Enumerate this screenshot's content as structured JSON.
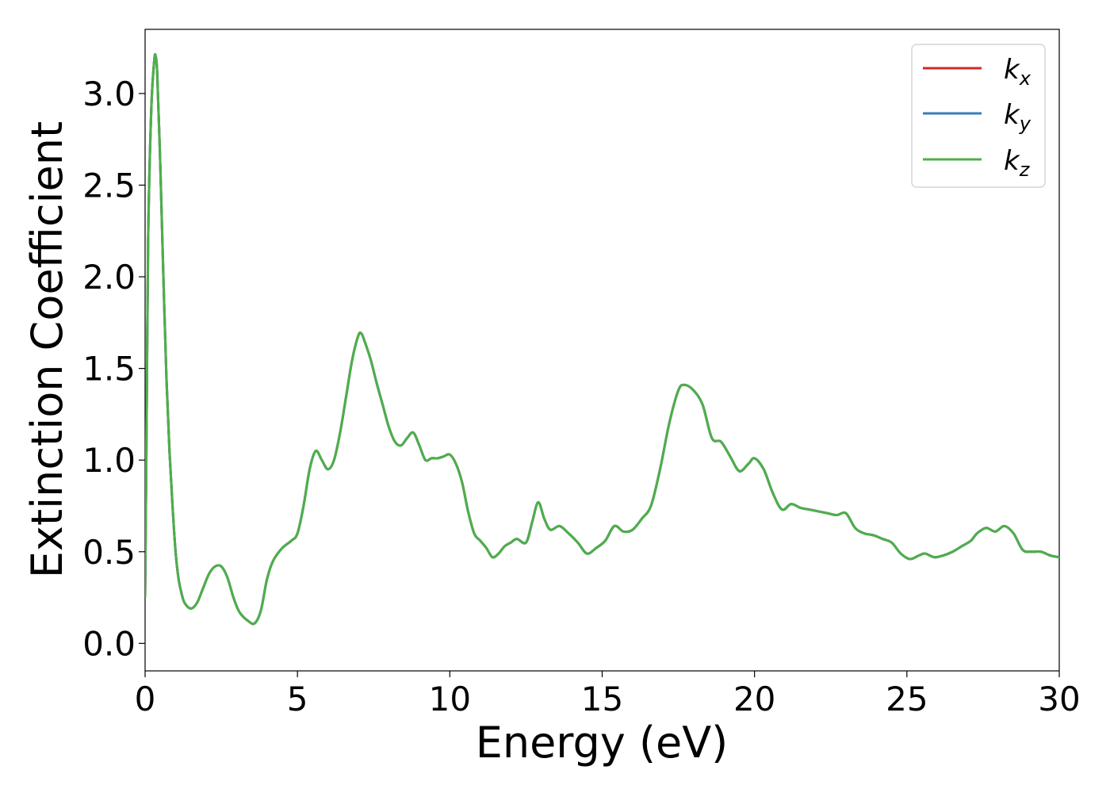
{
  "chart_data": {
    "type": "line",
    "title": "",
    "xlabel": "Energy (eV)",
    "ylabel": "Extinction Coefficient",
    "xlim": [
      0,
      30
    ],
    "ylim": [
      -0.15,
      3.35
    ],
    "x_ticks": [
      0,
      5,
      10,
      15,
      20,
      25,
      30
    ],
    "x_tick_labels": [
      "0",
      "5",
      "10",
      "15",
      "20",
      "25",
      "30"
    ],
    "y_ticks": [
      0.0,
      0.5,
      1.0,
      1.5,
      2.0,
      2.5,
      3.0
    ],
    "y_tick_labels": [
      "0.0",
      "0.5",
      "1.0",
      "1.5",
      "2.0",
      "2.5",
      "3.0"
    ],
    "grid": false,
    "legend_position": "top-right",
    "legend": [
      {
        "symbol": "k",
        "subscript": "x",
        "color": "#d62728"
      },
      {
        "symbol": "k",
        "subscript": "y",
        "color": "#377eb8"
      },
      {
        "symbol": "k",
        "subscript": "z",
        "color": "#4daf4a"
      }
    ],
    "x": [
      0.0,
      0.05,
      0.1,
      0.2,
      0.3,
      0.35,
      0.4,
      0.5,
      0.6,
      0.7,
      0.8,
      0.9,
      1.0,
      1.1,
      1.2,
      1.3,
      1.5,
      1.7,
      1.9,
      2.1,
      2.3,
      2.5,
      2.7,
      2.9,
      3.1,
      3.4,
      3.6,
      3.8,
      4.0,
      4.2,
      4.5,
      4.8,
      5.0,
      5.2,
      5.4,
      5.6,
      5.8,
      6.0,
      6.2,
      6.4,
      6.6,
      6.8,
      7.0,
      7.1,
      7.2,
      7.4,
      7.6,
      7.8,
      8.0,
      8.2,
      8.4,
      8.6,
      8.8,
      9.0,
      9.2,
      9.4,
      9.6,
      9.8,
      10.0,
      10.2,
      10.4,
      10.6,
      10.8,
      11.0,
      11.2,
      11.4,
      11.6,
      11.8,
      12.0,
      12.2,
      12.5,
      12.7,
      12.9,
      13.1,
      13.3,
      13.6,
      13.9,
      14.2,
      14.5,
      14.8,
      15.1,
      15.4,
      15.7,
      16.0,
      16.3,
      16.6,
      16.9,
      17.2,
      17.5,
      17.7,
      18.0,
      18.3,
      18.6,
      18.9,
      19.2,
      19.5,
      19.8,
      20.0,
      20.3,
      20.6,
      20.9,
      21.2,
      21.5,
      21.8,
      22.1,
      22.4,
      22.7,
      23.0,
      23.3,
      23.6,
      23.9,
      24.2,
      24.5,
      24.8,
      25.1,
      25.4,
      25.6,
      25.9,
      26.2,
      26.5,
      26.8,
      27.1,
      27.3,
      27.6,
      27.9,
      28.2,
      28.5,
      28.8,
      29.1,
      29.4,
      29.7,
      30.0
    ],
    "series": [
      {
        "color": "#d62728",
        "y": [
          0.25,
          1.2,
          2.2,
          2.9,
          3.18,
          3.2,
          3.1,
          2.6,
          2.0,
          1.45,
          1.05,
          0.75,
          0.5,
          0.35,
          0.27,
          0.22,
          0.19,
          0.22,
          0.3,
          0.38,
          0.42,
          0.42,
          0.36,
          0.25,
          0.17,
          0.12,
          0.11,
          0.18,
          0.35,
          0.45,
          0.52,
          0.56,
          0.6,
          0.75,
          0.95,
          1.05,
          1.0,
          0.95,
          1.0,
          1.15,
          1.35,
          1.55,
          1.68,
          1.69,
          1.65,
          1.55,
          1.42,
          1.3,
          1.18,
          1.1,
          1.08,
          1.12,
          1.15,
          1.08,
          1.0,
          1.01,
          1.01,
          1.02,
          1.03,
          0.98,
          0.88,
          0.72,
          0.6,
          0.56,
          0.52,
          0.47,
          0.49,
          0.53,
          0.55,
          0.57,
          0.55,
          0.66,
          0.77,
          0.68,
          0.62,
          0.64,
          0.6,
          0.55,
          0.49,
          0.52,
          0.56,
          0.64,
          0.61,
          0.62,
          0.68,
          0.75,
          0.95,
          1.2,
          1.38,
          1.41,
          1.38,
          1.3,
          1.12,
          1.1,
          1.02,
          0.94,
          0.98,
          1.01,
          0.95,
          0.82,
          0.73,
          0.76,
          0.74,
          0.73,
          0.72,
          0.71,
          0.7,
          0.71,
          0.63,
          0.6,
          0.59,
          0.57,
          0.55,
          0.49,
          0.46,
          0.48,
          0.49,
          0.47,
          0.48,
          0.5,
          0.53,
          0.56,
          0.6,
          0.63,
          0.61,
          0.64,
          0.6,
          0.51,
          0.5,
          0.5,
          0.48,
          0.47
        ]
      },
      {
        "color": "#377eb8",
        "y": [
          0.25,
          1.2,
          2.2,
          2.9,
          3.18,
          3.2,
          3.1,
          2.6,
          2.0,
          1.45,
          1.05,
          0.75,
          0.5,
          0.35,
          0.27,
          0.22,
          0.19,
          0.22,
          0.3,
          0.38,
          0.42,
          0.42,
          0.36,
          0.25,
          0.17,
          0.12,
          0.11,
          0.18,
          0.35,
          0.45,
          0.52,
          0.56,
          0.6,
          0.75,
          0.95,
          1.05,
          1.0,
          0.95,
          1.0,
          1.15,
          1.35,
          1.55,
          1.68,
          1.69,
          1.65,
          1.55,
          1.42,
          1.3,
          1.18,
          1.1,
          1.08,
          1.12,
          1.15,
          1.08,
          1.0,
          1.01,
          1.01,
          1.02,
          1.03,
          0.98,
          0.88,
          0.72,
          0.6,
          0.56,
          0.52,
          0.47,
          0.49,
          0.53,
          0.55,
          0.57,
          0.55,
          0.66,
          0.77,
          0.68,
          0.62,
          0.64,
          0.6,
          0.55,
          0.49,
          0.52,
          0.56,
          0.64,
          0.61,
          0.62,
          0.68,
          0.75,
          0.95,
          1.2,
          1.38,
          1.41,
          1.38,
          1.3,
          1.12,
          1.1,
          1.02,
          0.94,
          0.98,
          1.01,
          0.95,
          0.82,
          0.73,
          0.76,
          0.74,
          0.73,
          0.72,
          0.71,
          0.7,
          0.71,
          0.63,
          0.6,
          0.59,
          0.57,
          0.55,
          0.49,
          0.46,
          0.48,
          0.49,
          0.47,
          0.48,
          0.5,
          0.53,
          0.56,
          0.6,
          0.63,
          0.61,
          0.64,
          0.6,
          0.51,
          0.5,
          0.5,
          0.48,
          0.47
        ]
      },
      {
        "color": "#4daf4a",
        "y": [
          0.25,
          1.2,
          2.2,
          2.9,
          3.18,
          3.2,
          3.1,
          2.6,
          2.0,
          1.45,
          1.05,
          0.75,
          0.5,
          0.35,
          0.27,
          0.22,
          0.19,
          0.22,
          0.3,
          0.38,
          0.42,
          0.42,
          0.36,
          0.25,
          0.17,
          0.12,
          0.11,
          0.18,
          0.35,
          0.45,
          0.52,
          0.56,
          0.6,
          0.75,
          0.95,
          1.05,
          1.0,
          0.95,
          1.0,
          1.15,
          1.35,
          1.55,
          1.68,
          1.69,
          1.65,
          1.55,
          1.42,
          1.3,
          1.18,
          1.1,
          1.08,
          1.12,
          1.15,
          1.08,
          1.0,
          1.01,
          1.01,
          1.02,
          1.03,
          0.98,
          0.88,
          0.72,
          0.6,
          0.56,
          0.52,
          0.47,
          0.49,
          0.53,
          0.55,
          0.57,
          0.55,
          0.66,
          0.77,
          0.68,
          0.62,
          0.64,
          0.6,
          0.55,
          0.49,
          0.52,
          0.56,
          0.64,
          0.61,
          0.62,
          0.68,
          0.75,
          0.95,
          1.2,
          1.38,
          1.41,
          1.38,
          1.3,
          1.12,
          1.1,
          1.02,
          0.94,
          0.98,
          1.01,
          0.95,
          0.82,
          0.73,
          0.76,
          0.74,
          0.73,
          0.72,
          0.71,
          0.7,
          0.71,
          0.63,
          0.6,
          0.59,
          0.57,
          0.55,
          0.49,
          0.46,
          0.48,
          0.49,
          0.47,
          0.48,
          0.5,
          0.53,
          0.56,
          0.6,
          0.63,
          0.61,
          0.64,
          0.6,
          0.51,
          0.5,
          0.5,
          0.48,
          0.47
        ]
      }
    ]
  }
}
